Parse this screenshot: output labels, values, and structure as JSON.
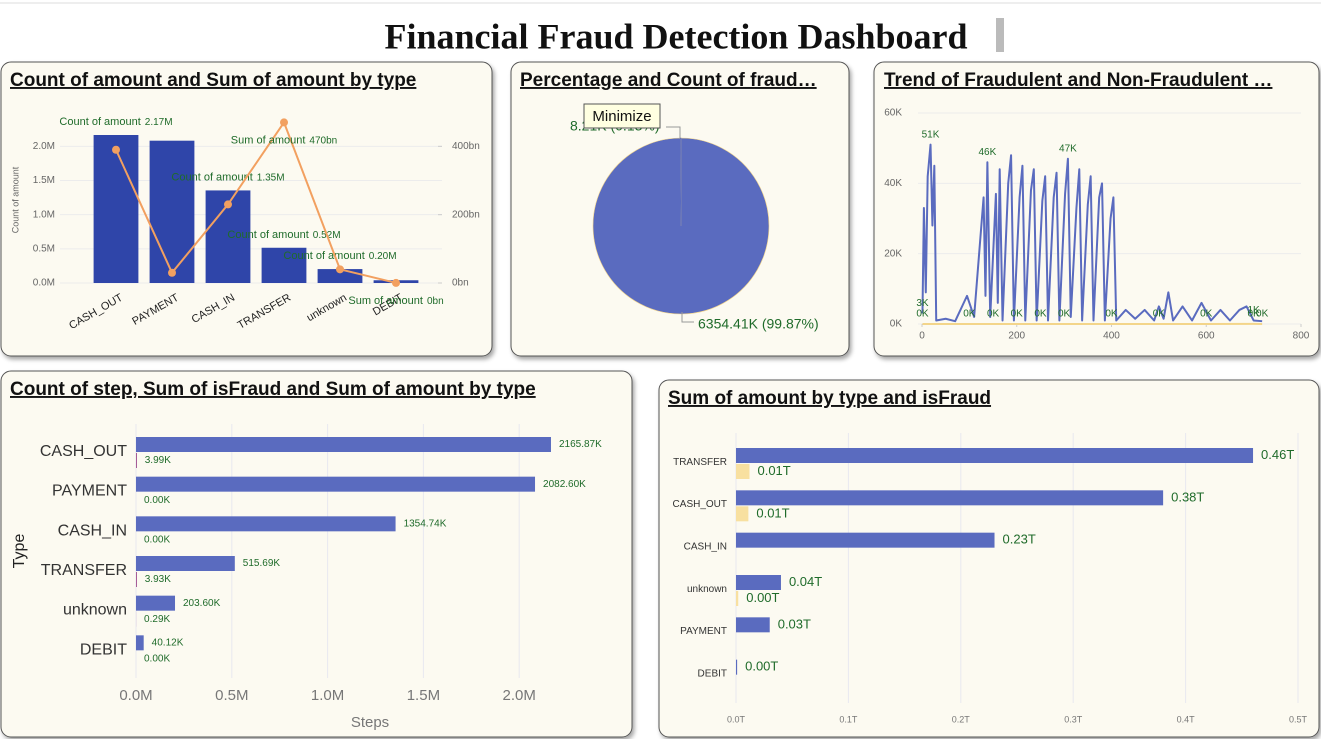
{
  "title": "Financial Fraud Detection Dashboard",
  "tooltip": "Minimize",
  "chart_data": [
    {
      "type": "combo",
      "title": "Count of amount and Sum of amount by type",
      "ylabel": "Count of amount",
      "categories": [
        "CASH_OUT",
        "PAYMENT",
        "CASH_IN",
        "TRANSFER",
        "unknown",
        "DEBIT"
      ],
      "series": [
        {
          "name": "Count of amount",
          "type": "bar",
          "color": "#2f45a9",
          "values": [
            2165870,
            2082600,
            1354740,
            515690,
            203600,
            40120
          ],
          "value_labels": [
            "2.17M",
            null,
            "1.35M",
            "0.52M",
            "0.20M",
            null
          ]
        },
        {
          "name": "Sum of amount",
          "type": "line",
          "axis": "y2",
          "color": "#f2a060",
          "values": [
            390,
            30,
            230,
            470,
            40,
            0.23
          ],
          "value_labels": [
            null,
            null,
            null,
            "470bn",
            null,
            "0bn"
          ]
        }
      ],
      "ylim": [
        0,
        2400000
      ],
      "yticks": [
        {
          "value": 0,
          "label": "0.0M"
        },
        {
          "value": 500000,
          "label": "0.5M"
        },
        {
          "value": 1000000,
          "label": "1.0M"
        },
        {
          "value": 1500000,
          "label": "1.5M"
        },
        {
          "value": 2000000,
          "label": "2.0M"
        }
      ],
      "y2lim": [
        0,
        480
      ],
      "y2ticks": [
        {
          "value": 0,
          "label": "0bn"
        },
        {
          "value": 200,
          "label": "200bn"
        },
        {
          "value": 400,
          "label": "400bn"
        }
      ],
      "grid": true
    },
    {
      "type": "pie",
      "title": "Percentage and Count of fraud…",
      "values": [
        6354.41,
        8.21
      ],
      "value_labels": [
        "6354.41K (99.87%)",
        "8.21K (0.13%)"
      ],
      "colors": [
        "#5a6bbf",
        "#f3d58a"
      ]
    },
    {
      "type": "line",
      "title": "Trend of Fraudulent and Non-Fraudulent …",
      "xlim": [
        0,
        800
      ],
      "xticks": [
        0,
        200,
        400,
        600,
        800
      ],
      "ylim": [
        0,
        60000
      ],
      "yticks": [
        {
          "value": 0,
          "label": "0K"
        },
        {
          "value": 20000,
          "label": "20K"
        },
        {
          "value": 40000,
          "label": "40K"
        },
        {
          "value": 60000,
          "label": "60K"
        }
      ],
      "grid": true,
      "series": [
        {
          "color": "#5a6bbf",
          "x": [
            1,
            4,
            8,
            12,
            18,
            22,
            26,
            30,
            50,
            70,
            95,
            110,
            130,
            134,
            138,
            144,
            156,
            160,
            164,
            170,
            182,
            188,
            194,
            206,
            212,
            218,
            230,
            236,
            242,
            254,
            260,
            266,
            278,
            284,
            290,
            302,
            308,
            314,
            326,
            332,
            338,
            350,
            356,
            362,
            374,
            380,
            386,
            398,
            404,
            410,
            430,
            450,
            470,
            490,
            500,
            510,
            520,
            530,
            550,
            570,
            590,
            610,
            630,
            650,
            670,
            685,
            700,
            718
          ],
          "values": [
            3000,
            33000,
            9000,
            42000,
            51000,
            28000,
            45000,
            1000,
            1500,
            800,
            8000,
            2000,
            36000,
            8000,
            46000,
            2000,
            37000,
            6000,
            44000,
            1000,
            40000,
            48000,
            1000,
            36000,
            45000,
            1000,
            38000,
            44000,
            1000,
            35000,
            42000,
            1000,
            36000,
            43000,
            1000,
            37000,
            47000,
            2000,
            33000,
            44000,
            1000,
            34000,
            42000,
            1000,
            36000,
            40000,
            1000,
            30000,
            36000,
            1000,
            4000,
            1500,
            4000,
            1000,
            5000,
            1500,
            9000,
            1000,
            5000,
            1000,
            6000,
            1000,
            4000,
            1000,
            4000,
            5000,
            1000,
            800
          ],
          "value_labels": [
            "3K",
            null,
            null,
            null,
            "51K",
            null,
            null,
            null,
            null,
            null,
            null,
            null,
            null,
            null,
            "46K",
            null,
            null,
            null,
            null,
            null,
            null,
            null,
            null,
            null,
            null,
            null,
            null,
            null,
            null,
            null,
            null,
            null,
            null,
            null,
            null,
            null,
            "47K",
            null,
            null,
            null,
            null,
            null,
            null,
            null,
            null,
            null,
            null,
            null,
            null,
            null,
            null,
            null,
            null,
            null,
            null,
            null,
            null,
            null,
            null,
            null,
            null,
            null,
            null,
            null,
            null,
            null,
            "1K",
            null
          ]
        },
        {
          "color": "#f3d58a",
          "x": [
            1,
            100,
            150,
            200,
            250,
            300,
            400,
            500,
            600,
            700,
            718
          ],
          "values": [
            15,
            12,
            10,
            14,
            10,
            12,
            15,
            10,
            12,
            20,
            15
          ],
          "value_labels": [
            "0K",
            "0K",
            "0K",
            "0K",
            "0K",
            "0K",
            "0K",
            "0K",
            "0K",
            "0K",
            "0K"
          ]
        }
      ]
    },
    {
      "type": "barh",
      "title": "Count of step, Sum of isFraud and Sum of amount by type",
      "xlabel": "Steps",
      "ylabel": "Type",
      "categories": [
        "CASH_OUT",
        "PAYMENT",
        "CASH_IN",
        "TRANSFER",
        "unknown",
        "DEBIT"
      ],
      "series": [
        {
          "color": "#5a6bbf",
          "values": [
            2165870,
            2082600,
            1354740,
            515690,
            203600,
            40120
          ],
          "value_labels": [
            "2165.87K",
            "2082.60K",
            "1354.74K",
            "515.69K",
            "203.60K",
            "40.12K"
          ]
        },
        {
          "color": "#8b2c7a",
          "values": [
            3990,
            0,
            0,
            3930,
            290,
            0
          ],
          "value_labels": [
            "3.99K",
            "0.00K",
            "0.00K",
            "3.93K",
            "0.29K",
            "0.00K"
          ]
        }
      ],
      "xlim": [
        0,
        2500000
      ],
      "xticks": [
        {
          "value": 0,
          "label": "0.0M"
        },
        {
          "value": 500000,
          "label": "0.5M"
        },
        {
          "value": 1000000,
          "label": "1.0M"
        },
        {
          "value": 1500000,
          "label": "1.5M"
        },
        {
          "value": 2000000,
          "label": "2.0M"
        }
      ],
      "grid": true
    },
    {
      "type": "barh",
      "title": "Sum of amount by type and isFraud",
      "categories": [
        "TRANSFER",
        "CASH_OUT",
        "CASH_IN",
        "unknown",
        "PAYMENT",
        "DEBIT"
      ],
      "series": [
        {
          "color": "#5a6bbf",
          "values": [
            0.46,
            0.38,
            0.23,
            0.04,
            0.03,
            0.001
          ],
          "value_labels": [
            "0.46T",
            "0.38T",
            "0.23T",
            "0.04T",
            "0.03T",
            "0.00T"
          ]
        },
        {
          "color": "#f8e0a0",
          "values": [
            0.012,
            0.011,
            null,
            0.002,
            null,
            null
          ],
          "value_labels": [
            "0.01T",
            "0.01T",
            null,
            "0.00T",
            null,
            null
          ]
        }
      ],
      "xlim": [
        0,
        0.5
      ],
      "xticks": [
        {
          "value": 0,
          "label": "0.0T"
        },
        {
          "value": 0.1,
          "label": "0.1T"
        },
        {
          "value": 0.2,
          "label": "0.2T"
        },
        {
          "value": 0.3,
          "label": "0.3T"
        },
        {
          "value": 0.4,
          "label": "0.4T"
        },
        {
          "value": 0.5,
          "label": "0.5T"
        }
      ],
      "grid": true
    }
  ]
}
